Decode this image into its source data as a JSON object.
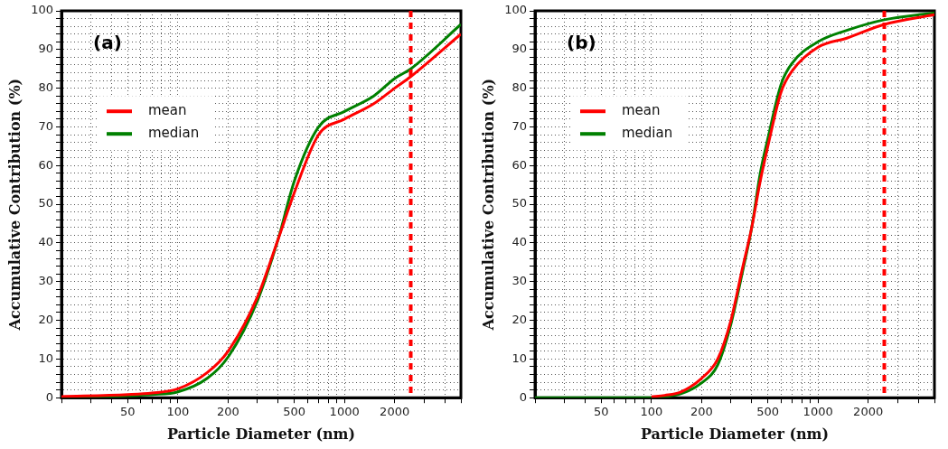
{
  "chart_data": [
    {
      "type": "line",
      "xlabel": "Particle Diameter (nm)",
      "ylabel": "Accumulative Contribution (%)",
      "annotations": [
        "(a)"
      ],
      "log": "x",
      "grid": true,
      "legend": "top left",
      "marker": "none",
      "line_style": "solid",
      "xlim": [
        20,
        5000
      ],
      "ylim": [
        0,
        100
      ],
      "xticks": [
        {
          "value": 20,
          "label": null
        },
        {
          "value": 30,
          "label": null
        },
        {
          "value": 40,
          "label": null
        },
        50,
        {
          "value": 60,
          "label": null
        },
        {
          "value": 70,
          "label": null
        },
        {
          "value": 80,
          "label": null
        },
        {
          "value": 90,
          "label": null
        },
        100,
        200,
        {
          "value": 300,
          "label": null
        },
        {
          "value": 400,
          "label": null
        },
        500,
        {
          "value": 600,
          "label": null
        },
        {
          "value": 700,
          "label": null
        },
        {
          "value": 800,
          "label": null
        },
        {
          "value": 900,
          "label": null
        },
        1000,
        2000,
        {
          "value": 3000,
          "label": null
        },
        {
          "value": 4000,
          "label": null
        },
        {
          "value": 5000,
          "label": null
        }
      ],
      "yticks": [
        0,
        {
          "value": 2,
          "label": null
        },
        {
          "value": 4,
          "label": null
        },
        {
          "value": 6,
          "label": null
        },
        {
          "value": 8,
          "label": null
        },
        10,
        {
          "value": 12,
          "label": null
        },
        {
          "value": 14,
          "label": null
        },
        {
          "value": 16,
          "label": null
        },
        {
          "value": 18,
          "label": null
        },
        20,
        {
          "value": 22,
          "label": null
        },
        {
          "value": 24,
          "label": null
        },
        {
          "value": 26,
          "label": null
        },
        {
          "value": 28,
          "label": null
        },
        30,
        {
          "value": 32,
          "label": null
        },
        {
          "value": 34,
          "label": null
        },
        {
          "value": 36,
          "label": null
        },
        {
          "value": 38,
          "label": null
        },
        40,
        {
          "value": 42,
          "label": null
        },
        {
          "value": 44,
          "label": null
        },
        {
          "value": 46,
          "label": null
        },
        {
          "value": 48,
          "label": null
        },
        50,
        {
          "value": 52,
          "label": null
        },
        {
          "value": 54,
          "label": null
        },
        {
          "value": 56,
          "label": null
        },
        {
          "value": 58,
          "label": null
        },
        60,
        {
          "value": 62,
          "label": null
        },
        {
          "value": 64,
          "label": null
        },
        {
          "value": 66,
          "label": null
        },
        {
          "value": 68,
          "label": null
        },
        70,
        {
          "value": 72,
          "label": null
        },
        {
          "value": 74,
          "label": null
        },
        {
          "value": 76,
          "label": null
        },
        {
          "value": 78,
          "label": null
        },
        80,
        {
          "value": 82,
          "label": null
        },
        {
          "value": 84,
          "label": null
        },
        {
          "value": 86,
          "label": null
        },
        {
          "value": 88,
          "label": null
        },
        90,
        {
          "value": 92,
          "label": null
        },
        {
          "value": 94,
          "label": null
        },
        {
          "value": 96,
          "label": null
        },
        {
          "value": 98,
          "label": null
        },
        100
      ],
      "x": [
        20,
        50,
        70,
        100,
        150,
        200,
        300,
        400,
        500,
        700,
        1000,
        1500,
        2000,
        2500,
        5000
      ],
      "series": [
        {
          "name": "mean",
          "color": "#ff0000",
          "values": [
            0.3,
            0.8,
            1.2,
            2.3,
            6.5,
            12,
            26,
            41,
            53,
            68,
            72,
            76,
            80,
            83,
            94
          ]
        },
        {
          "name": "median",
          "color": "#008000",
          "values": [
            0.1,
            0.5,
            0.8,
            1.5,
            5,
            10.5,
            25,
            41,
            56,
            70,
            74,
            78,
            82.5,
            85,
            96.5
          ]
        }
      ],
      "ref_lines": [
        {
          "axis": "x",
          "value": 2500,
          "color": "#ff0000",
          "line_style": "dashed"
        }
      ]
    },
    {
      "type": "line",
      "xlabel": "Particle Diameter (nm)",
      "ylabel": "Accumulative Contribution (%)",
      "annotations": [
        "(b)"
      ],
      "log": "x",
      "grid": true,
      "legend": "top left",
      "marker": "none",
      "line_style": "solid",
      "xlim": [
        20,
        5000
      ],
      "ylim": [
        0,
        100
      ],
      "xticks": [
        {
          "value": 20,
          "label": null
        },
        {
          "value": 30,
          "label": null
        },
        {
          "value": 40,
          "label": null
        },
        50,
        {
          "value": 60,
          "label": null
        },
        {
          "value": 70,
          "label": null
        },
        {
          "value": 80,
          "label": null
        },
        {
          "value": 90,
          "label": null
        },
        100,
        200,
        {
          "value": 300,
          "label": null
        },
        {
          "value": 400,
          "label": null
        },
        500,
        {
          "value": 600,
          "label": null
        },
        {
          "value": 700,
          "label": null
        },
        {
          "value": 800,
          "label": null
        },
        {
          "value": 900,
          "label": null
        },
        1000,
        2000,
        {
          "value": 3000,
          "label": null
        },
        {
          "value": 4000,
          "label": null
        },
        {
          "value": 5000,
          "label": null
        }
      ],
      "yticks": [
        0,
        {
          "value": 2,
          "label": null
        },
        {
          "value": 4,
          "label": null
        },
        {
          "value": 6,
          "label": null
        },
        {
          "value": 8,
          "label": null
        },
        10,
        {
          "value": 12,
          "label": null
        },
        {
          "value": 14,
          "label": null
        },
        {
          "value": 16,
          "label": null
        },
        {
          "value": 18,
          "label": null
        },
        20,
        {
          "value": 22,
          "label": null
        },
        {
          "value": 24,
          "label": null
        },
        {
          "value": 26,
          "label": null
        },
        {
          "value": 28,
          "label": null
        },
        30,
        {
          "value": 32,
          "label": null
        },
        {
          "value": 34,
          "label": null
        },
        {
          "value": 36,
          "label": null
        },
        {
          "value": 38,
          "label": null
        },
        40,
        {
          "value": 42,
          "label": null
        },
        {
          "value": 44,
          "label": null
        },
        {
          "value": 46,
          "label": null
        },
        {
          "value": 48,
          "label": null
        },
        50,
        {
          "value": 52,
          "label": null
        },
        {
          "value": 54,
          "label": null
        },
        {
          "value": 56,
          "label": null
        },
        {
          "value": 58,
          "label": null
        },
        60,
        {
          "value": 62,
          "label": null
        },
        {
          "value": 64,
          "label": null
        },
        {
          "value": 66,
          "label": null
        },
        {
          "value": 68,
          "label": null
        },
        70,
        {
          "value": 72,
          "label": null
        },
        {
          "value": 74,
          "label": null
        },
        {
          "value": 76,
          "label": null
        },
        {
          "value": 78,
          "label": null
        },
        80,
        {
          "value": 82,
          "label": null
        },
        {
          "value": 84,
          "label": null
        },
        {
          "value": 86,
          "label": null
        },
        {
          "value": 88,
          "label": null
        },
        90,
        {
          "value": 92,
          "label": null
        },
        {
          "value": 94,
          "label": null
        },
        {
          "value": 96,
          "label": null
        },
        {
          "value": 98,
          "label": null
        },
        100
      ],
      "x": [
        20,
        100,
        120,
        150,
        200,
        250,
        300,
        350,
        400,
        450,
        500,
        600,
        700,
        1000,
        1500,
        2500,
        5000
      ],
      "series": [
        {
          "name": "mean",
          "color": "#ff0000",
          "values": [
            null,
            0.2,
            0.6,
            1.5,
            5,
            10,
            20,
            33,
            44,
            56,
            65,
            79,
            84.5,
            90.6,
            93,
            96.5,
            99
          ]
        },
        {
          "name": "median",
          "color": "#008000",
          "values": [
            0,
            0,
            0.3,
            1,
            3.8,
            8.5,
            19,
            32,
            44,
            58,
            67,
            81,
            86.5,
            92,
            95,
            97.7,
            99.5
          ]
        }
      ],
      "ref_lines": [
        {
          "axis": "x",
          "value": 2500,
          "color": "#ff0000",
          "line_style": "dashed"
        }
      ]
    }
  ]
}
